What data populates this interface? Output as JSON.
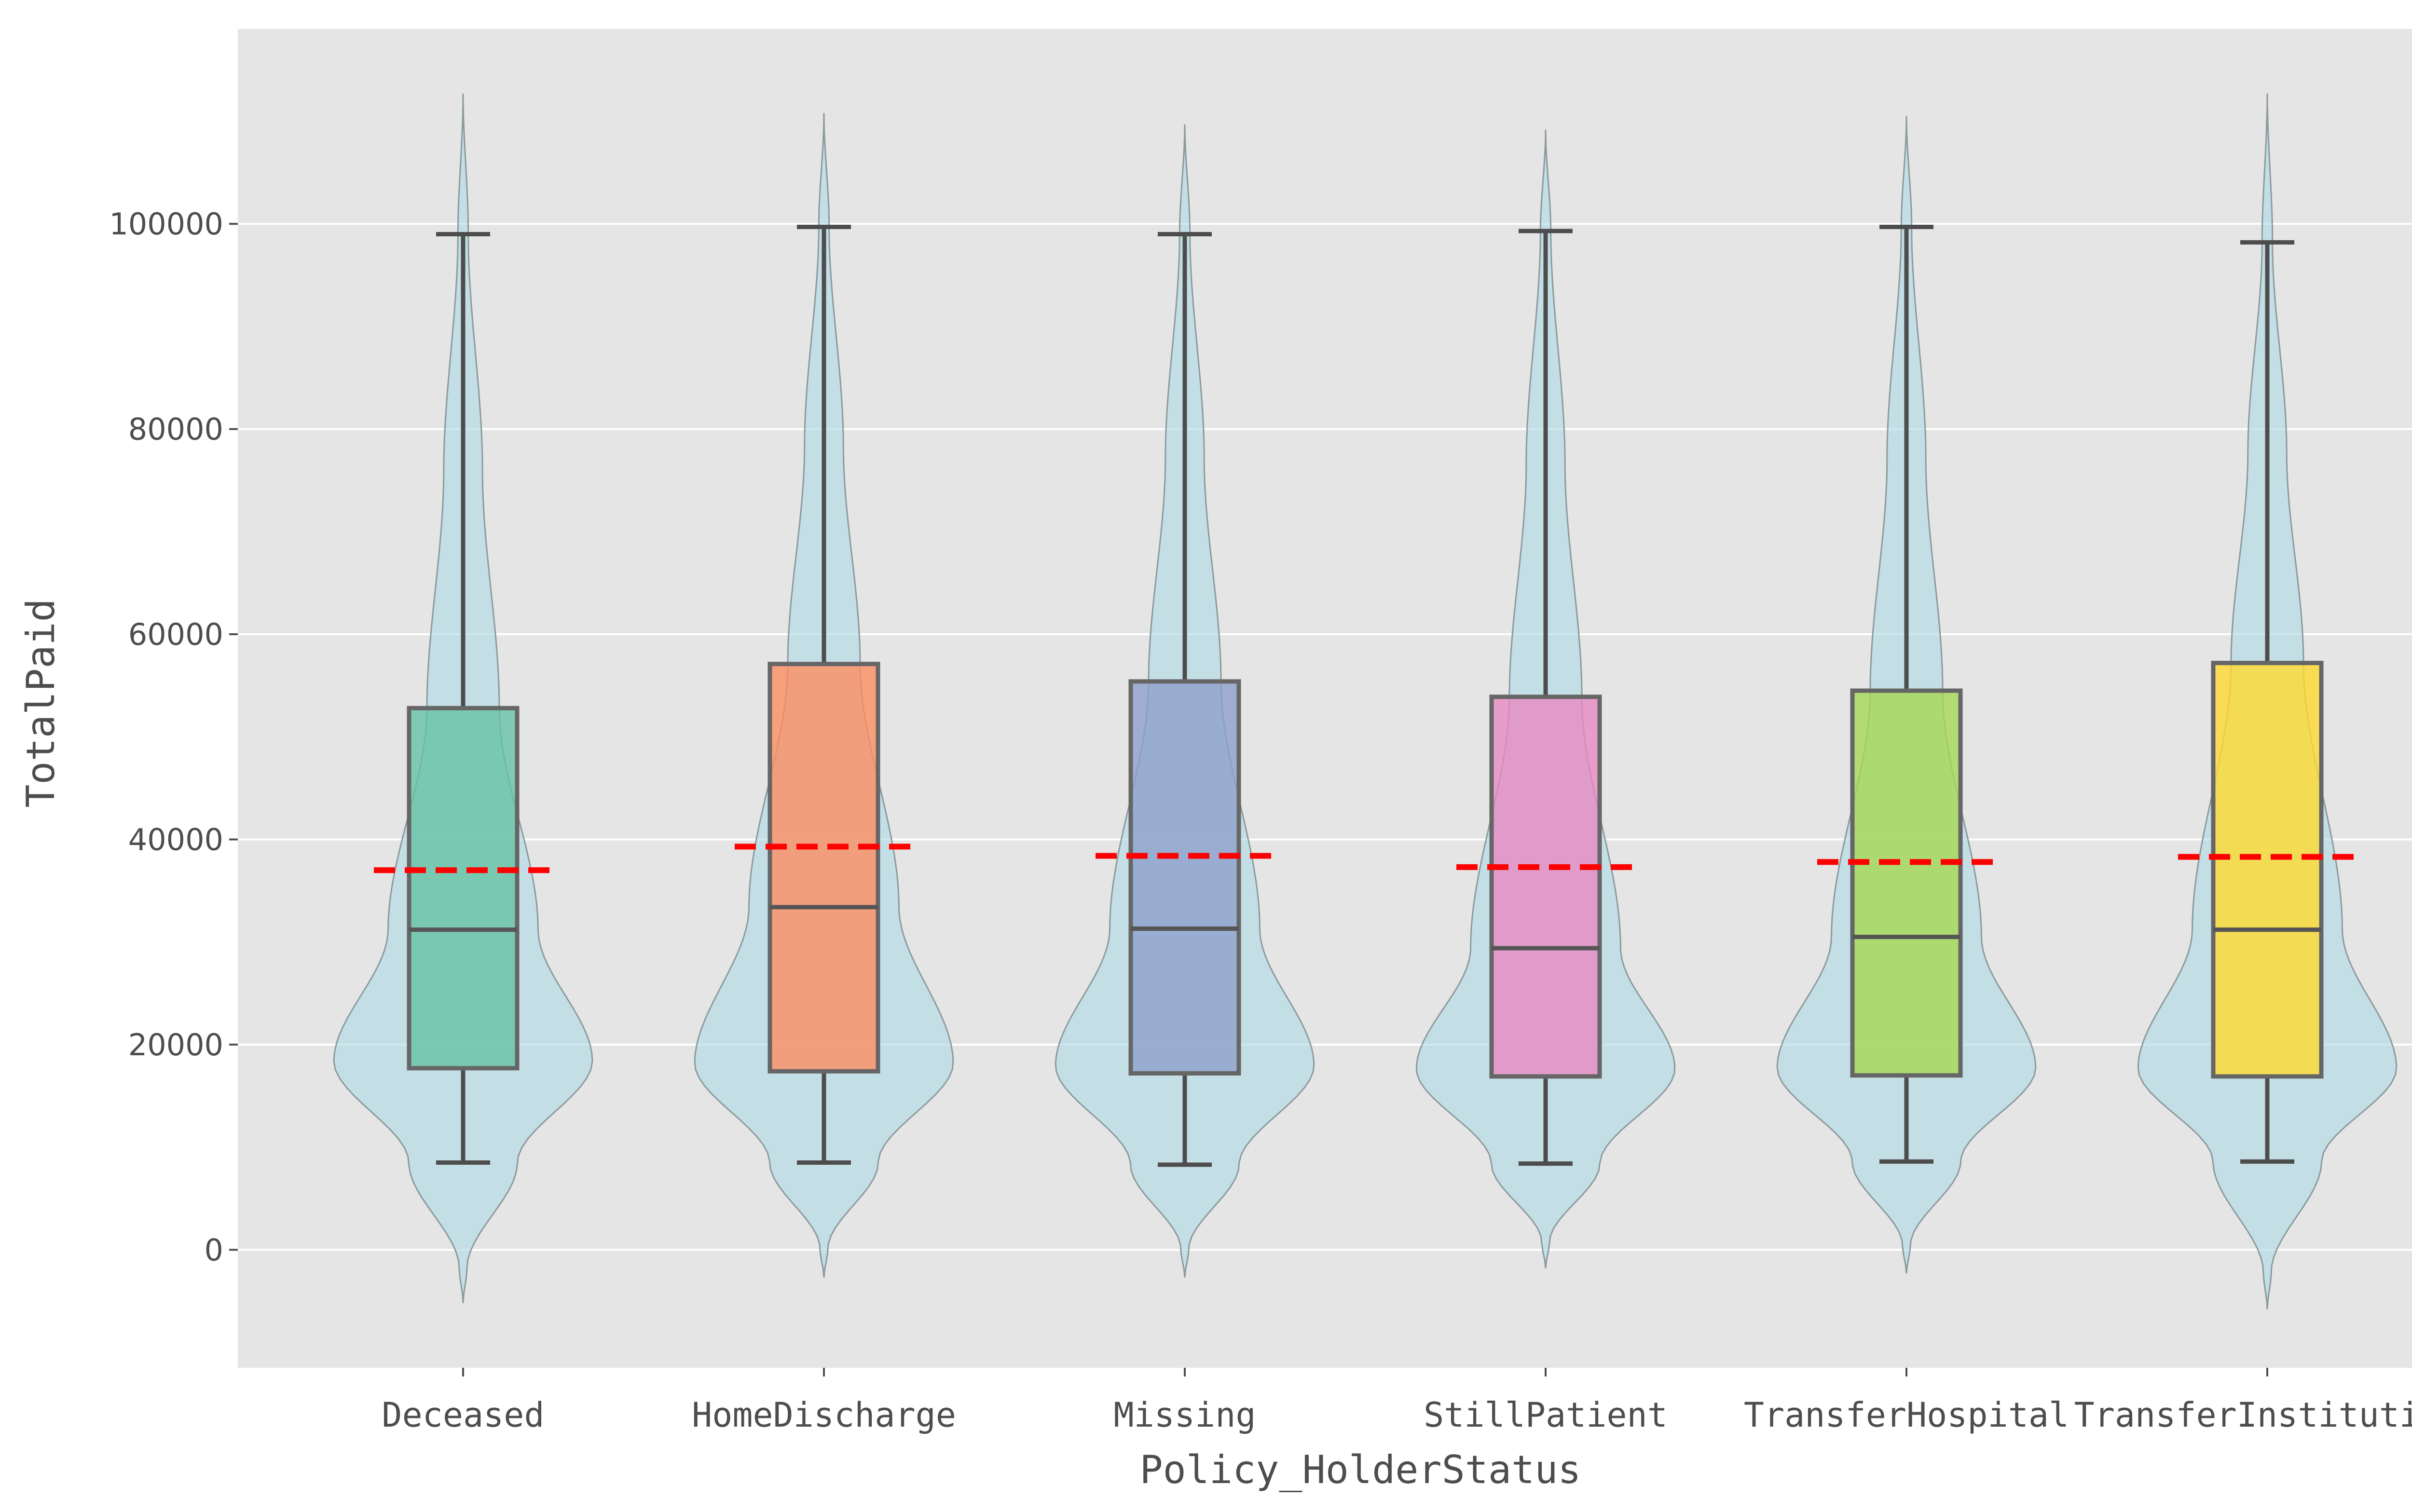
{
  "chart_data": {
    "type": "violin-box",
    "xlabel": "Policy_HolderStatus",
    "ylabel": "TotalPaid",
    "ylim": [
      -11500,
      119000
    ],
    "yticks": [
      0,
      20000,
      40000,
      60000,
      80000,
      100000
    ],
    "ytick_labels": [
      "0",
      "20000",
      "40000",
      "60000",
      "80000",
      "100000"
    ],
    "grid": true,
    "legend": "none",
    "background_color": "#e5e5e5",
    "violin_color": "#add8e6",
    "mean_line_color": "#ff0000",
    "categories": [
      "Deceased",
      "HomeDischarge",
      "Missing",
      "StillPatient",
      "TransferHospital",
      "TransferInstitution"
    ],
    "box_colors": [
      "#66c2a5",
      "#fc8d62",
      "#8da0cb",
      "#e78ac3",
      "#a6d854",
      "#ffd92f"
    ],
    "series": [
      {
        "category": "Deceased",
        "violin_min": -5200,
        "violin_max": 112700,
        "whisker_low": 8500,
        "q1": 17700,
        "median": 31200,
        "q3": 52800,
        "whisker_high": 99000,
        "mean": 37000
      },
      {
        "category": "HomeDischarge",
        "violin_min": -2700,
        "violin_max": 110800,
        "whisker_low": 8500,
        "q1": 17400,
        "median": 33400,
        "q3": 57100,
        "whisker_high": 99700,
        "mean": 39300
      },
      {
        "category": "Missing",
        "violin_min": -2700,
        "violin_max": 109700,
        "whisker_low": 8300,
        "q1": 17200,
        "median": 31300,
        "q3": 55400,
        "whisker_high": 99000,
        "mean": 38400
      },
      {
        "category": "StillPatient",
        "violin_min": -1800,
        "violin_max": 109200,
        "whisker_low": 8400,
        "q1": 16900,
        "median": 29400,
        "q3": 53900,
        "whisker_high": 99300,
        "mean": 37300
      },
      {
        "category": "TransferHospital",
        "violin_min": -2300,
        "violin_max": 110500,
        "whisker_low": 8600,
        "q1": 17000,
        "median": 30500,
        "q3": 54500,
        "whisker_high": 99700,
        "mean": 37800
      },
      {
        "category": "TransferInstitution",
        "violin_min": -5800,
        "violin_max": 112700,
        "whisker_low": 8600,
        "q1": 16900,
        "median": 31200,
        "q3": 57200,
        "whisker_high": 98200,
        "mean": 38300
      }
    ]
  }
}
